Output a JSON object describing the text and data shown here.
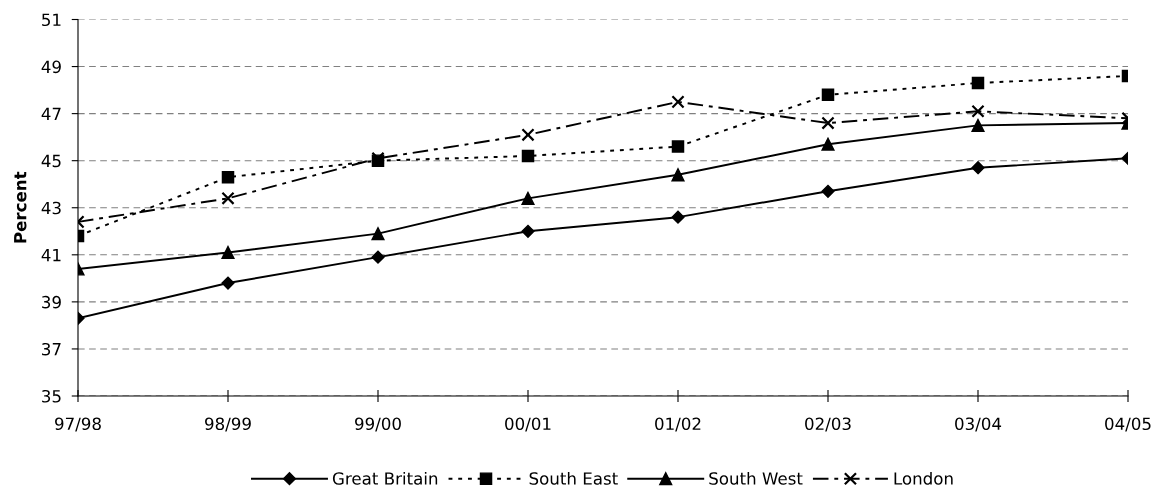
{
  "chart_data": {
    "type": "line",
    "ylabel": "Percent",
    "categories": [
      "97/98",
      "98/99",
      "99/00",
      "00/01",
      "01/02",
      "02/03",
      "03/04",
      "04/05"
    ],
    "series": [
      {
        "name": "Great Britain",
        "color": "#000000",
        "marker": "diamond",
        "line_style": "solid",
        "values": [
          38.3,
          39.8,
          40.9,
          42.0,
          42.6,
          43.7,
          44.7,
          45.1
        ]
      },
      {
        "name": "South East",
        "color": "#000000",
        "marker": "square",
        "line_style": "dotted",
        "values": [
          41.8,
          44.3,
          45.0,
          45.2,
          45.6,
          47.8,
          48.3,
          48.6
        ]
      },
      {
        "name": "South West",
        "color": "#000000",
        "marker": "triangle",
        "line_style": "solid",
        "values": [
          40.4,
          41.1,
          41.9,
          43.4,
          44.4,
          45.7,
          46.5,
          46.6
        ]
      },
      {
        "name": "London",
        "color": "#000000",
        "marker": "cross",
        "line_style": "dashed",
        "values": [
          42.4,
          43.4,
          45.1,
          46.1,
          47.5,
          46.6,
          47.1,
          46.8
        ]
      }
    ],
    "ylim": [
      35,
      51
    ],
    "yticks": [
      35,
      37,
      39,
      41,
      43,
      45,
      47,
      49,
      51
    ],
    "grid": "y",
    "legend": "bottom"
  }
}
